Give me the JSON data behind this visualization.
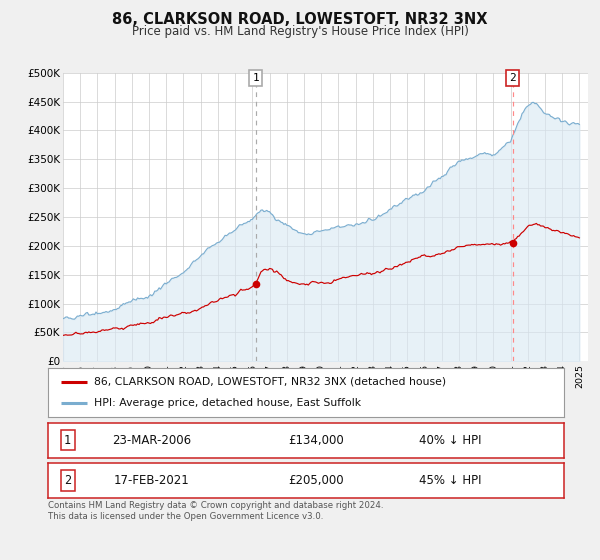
{
  "title": "86, CLARKSON ROAD, LOWESTOFT, NR32 3NX",
  "subtitle": "Price paid vs. HM Land Registry's House Price Index (HPI)",
  "red_label": "86, CLARKSON ROAD, LOWESTOFT, NR32 3NX (detached house)",
  "blue_label": "HPI: Average price, detached house, East Suffolk",
  "transaction1_date": "23-MAR-2006",
  "transaction1_price": "£134,000",
  "transaction1_hpi": "40% ↓ HPI",
  "transaction2_date": "17-FEB-2021",
  "transaction2_price": "£205,000",
  "transaction2_hpi": "45% ↓ HPI",
  "vline1_x": 2006.21,
  "vline2_x": 2021.12,
  "dot1_x": 2006.21,
  "dot1_y": 134000,
  "dot2_x": 2021.12,
  "dot2_y": 205000,
  "ylim": [
    0,
    500000
  ],
  "xlim_left": 1995.0,
  "xlim_right": 2025.5,
  "red_color": "#cc0000",
  "blue_color": "#7aadcf",
  "blue_fill": "#d8e8f3",
  "vline1_color": "#aaaaaa",
  "vline2_color": "#ff8888",
  "background_color": "#f0f0f0",
  "plot_bg": "#ffffff",
  "footer": "Contains HM Land Registry data © Crown copyright and database right 2024.\nThis data is licensed under the Open Government Licence v3.0.",
  "ytick_labels": [
    "£0",
    "£50K",
    "£100K",
    "£150K",
    "£200K",
    "£250K",
    "£300K",
    "£350K",
    "£400K",
    "£450K",
    "£500K"
  ],
  "ytick_vals": [
    0,
    50000,
    100000,
    150000,
    200000,
    250000,
    300000,
    350000,
    400000,
    450000,
    500000
  ]
}
